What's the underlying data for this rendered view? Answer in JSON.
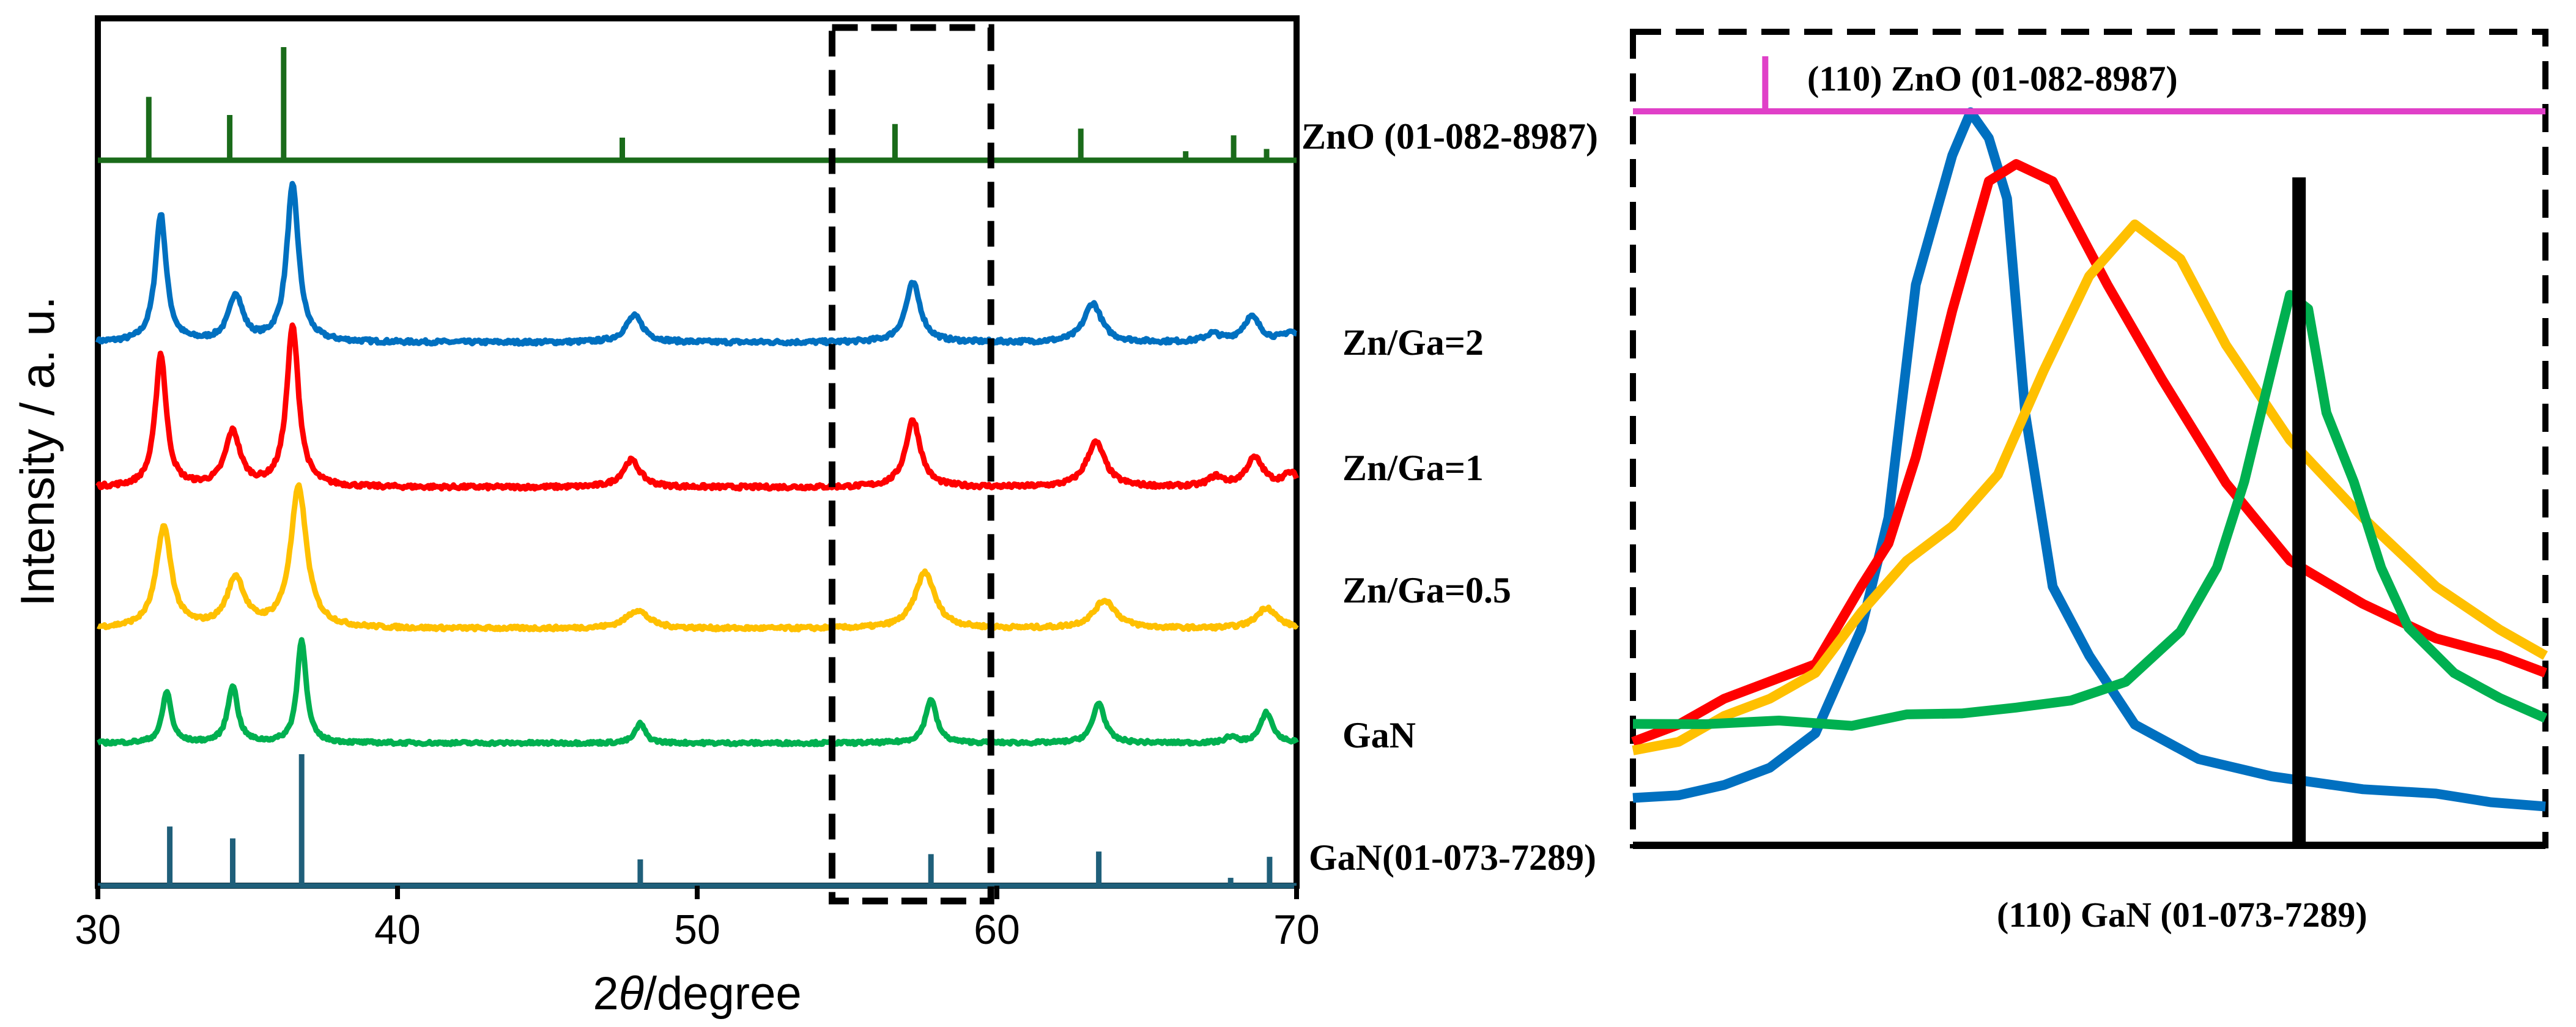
{
  "chart_data": [
    {
      "type": "line",
      "panel": "main-xrd",
      "xlabel_prefix": "2",
      "xlabel_theta": "θ",
      "xlabel_suffix": "/degree",
      "ylabel": "Intensity / a. u.",
      "xlim": [
        30,
        70
      ],
      "xticks": [
        30,
        40,
        50,
        60,
        70
      ],
      "colors": {
        "zno_ref": "#1a6b1a",
        "zn_ga_2": "#0070c0",
        "zn_ga_1": "#ff0000",
        "zn_ga_05": "#ffc000",
        "gan": "#00b050",
        "gan_ref": "#1f5f7a"
      },
      "series": [
        {
          "key": "zn_ga_2",
          "name": "Zn/Ga=2",
          "baseline_rel": 0.25,
          "peaks": [
            [
              32.1,
              0.82,
              0.22
            ],
            [
              34.6,
              0.3,
              0.28
            ],
            [
              36.5,
              1.0,
              0.24
            ],
            [
              47.9,
              0.17,
              0.35
            ],
            [
              57.2,
              0.38,
              0.3
            ],
            [
              63.2,
              0.25,
              0.35
            ],
            [
              67.2,
              0.05,
              0.3
            ],
            [
              68.5,
              0.16,
              0.35
            ],
            [
              69.8,
              0.06,
              0.3
            ]
          ]
        },
        {
          "key": "zn_ga_1",
          "name": "Zn/Ga=1",
          "baseline_rel": 0.25,
          "peaks": [
            [
              32.1,
              0.83,
              0.22
            ],
            [
              34.5,
              0.34,
              0.3
            ],
            [
              36.5,
              1.0,
              0.24
            ],
            [
              47.8,
              0.17,
              0.35
            ],
            [
              57.2,
              0.42,
              0.3
            ],
            [
              63.3,
              0.28,
              0.38
            ],
            [
              67.3,
              0.06,
              0.3
            ],
            [
              68.6,
              0.18,
              0.35
            ],
            [
              69.8,
              0.08,
              0.3
            ]
          ]
        },
        {
          "key": "zn_ga_05",
          "name": "Zn/Ga=0.5",
          "baseline_rel": 0.25,
          "peaks": [
            [
              32.2,
              0.72,
              0.3
            ],
            [
              34.6,
              0.35,
              0.35
            ],
            [
              36.7,
              1.0,
              0.32
            ],
            [
              48.0,
              0.13,
              0.45
            ],
            [
              57.6,
              0.4,
              0.4
            ],
            [
              63.6,
              0.2,
              0.45
            ],
            [
              69.0,
              0.15,
              0.4
            ]
          ]
        },
        {
          "key": "gan",
          "name": "GaN",
          "baseline_rel": 0.25,
          "peaks": [
            [
              32.3,
              0.42,
              0.18
            ],
            [
              34.5,
              0.47,
              0.2
            ],
            [
              36.8,
              0.85,
              0.18
            ],
            [
              48.1,
              0.16,
              0.2
            ],
            [
              57.8,
              0.36,
              0.22
            ],
            [
              63.4,
              0.33,
              0.24
            ],
            [
              67.8,
              0.05,
              0.2
            ],
            [
              69.0,
              0.25,
              0.24
            ]
          ]
        }
      ],
      "references": [
        {
          "key": "zno_ref",
          "name": "ZnO (01-082-8987)",
          "sticks": [
            [
              31.7,
              0.56
            ],
            [
              34.4,
              0.4
            ],
            [
              36.2,
              1.0
            ],
            [
              47.5,
              0.2
            ],
            [
              56.6,
              0.32
            ],
            [
              62.8,
              0.28
            ],
            [
              66.3,
              0.08
            ],
            [
              67.9,
              0.22
            ],
            [
              69.0,
              0.1
            ]
          ]
        },
        {
          "key": "gan_ref",
          "name": "GaN(01-073-7289)",
          "sticks": [
            [
              32.4,
              0.45
            ],
            [
              34.5,
              0.36
            ],
            [
              36.8,
              1.0
            ],
            [
              48.1,
              0.2
            ],
            [
              57.8,
              0.24
            ],
            [
              63.4,
              0.26
            ],
            [
              67.8,
              0.06
            ],
            [
              69.1,
              0.22
            ]
          ]
        }
      ],
      "zoom_box_x": [
        54.5,
        59.8
      ]
    },
    {
      "type": "line",
      "panel": "zoom-inset",
      "top_label": "(110) ZnO (01-082-8987)",
      "bottom_label": "(110) GaN (01-073-7289)",
      "ref_colors": {
        "zno": "#e040c8",
        "gan": "#000000"
      },
      "x_rel_range": [
        0,
        1
      ],
      "zno_ref_x_rel": 0.145,
      "gan_ref_x_rel": 0.73,
      "series": [
        {
          "key": "zn_ga_2",
          "name": "Zn/Ga=2",
          "color": "#0070c0",
          "points": [
            [
              0,
              0.055
            ],
            [
              0.05,
              0.058
            ],
            [
              0.1,
              0.07
            ],
            [
              0.15,
              0.09
            ],
            [
              0.2,
              0.13
            ],
            [
              0.25,
              0.25
            ],
            [
              0.28,
              0.38
            ],
            [
              0.31,
              0.65
            ],
            [
              0.35,
              0.8
            ],
            [
              0.37,
              0.85
            ],
            [
              0.39,
              0.82
            ],
            [
              0.41,
              0.75
            ],
            [
              0.43,
              0.5
            ],
            [
              0.46,
              0.3
            ],
            [
              0.5,
              0.22
            ],
            [
              0.55,
              0.14
            ],
            [
              0.62,
              0.1
            ],
            [
              0.7,
              0.08
            ],
            [
              0.8,
              0.065
            ],
            [
              0.88,
              0.06
            ],
            [
              0.94,
              0.05
            ],
            [
              1,
              0.045
            ]
          ]
        },
        {
          "key": "zn_ga_1",
          "name": "Zn/Ga=1",
          "color": "#ff0000",
          "points": [
            [
              0,
              0.12
            ],
            [
              0.05,
              0.14
            ],
            [
              0.1,
              0.17
            ],
            [
              0.15,
              0.19
            ],
            [
              0.2,
              0.21
            ],
            [
              0.25,
              0.3
            ],
            [
              0.28,
              0.35
            ],
            [
              0.31,
              0.45
            ],
            [
              0.35,
              0.62
            ],
            [
              0.39,
              0.77
            ],
            [
              0.42,
              0.79
            ],
            [
              0.46,
              0.77
            ],
            [
              0.52,
              0.65
            ],
            [
              0.58,
              0.54
            ],
            [
              0.65,
              0.42
            ],
            [
              0.72,
              0.33
            ],
            [
              0.8,
              0.28
            ],
            [
              0.88,
              0.24
            ],
            [
              0.95,
              0.22
            ],
            [
              1,
              0.2
            ]
          ]
        },
        {
          "key": "zn_ga_05",
          "name": "Zn/Ga=0.5",
          "color": "#ffc000",
          "points": [
            [
              0,
              0.11
            ],
            [
              0.05,
              0.12
            ],
            [
              0.1,
              0.15
            ],
            [
              0.15,
              0.17
            ],
            [
              0.2,
              0.2
            ],
            [
              0.25,
              0.27
            ],
            [
              0.3,
              0.33
            ],
            [
              0.35,
              0.37
            ],
            [
              0.4,
              0.43
            ],
            [
              0.45,
              0.55
            ],
            [
              0.5,
              0.66
            ],
            [
              0.55,
              0.72
            ],
            [
              0.6,
              0.68
            ],
            [
              0.65,
              0.58
            ],
            [
              0.72,
              0.47
            ],
            [
              0.8,
              0.38
            ],
            [
              0.88,
              0.3
            ],
            [
              0.95,
              0.25
            ],
            [
              1,
              0.22
            ]
          ]
        },
        {
          "key": "gan",
          "name": "GaN",
          "color": "#00b050",
          "points": [
            [
              0,
              0.14
            ],
            [
              0.08,
              0.14
            ],
            [
              0.16,
              0.145
            ],
            [
              0.24,
              0.14
            ],
            [
              0.3,
              0.15
            ],
            [
              0.36,
              0.155
            ],
            [
              0.42,
              0.16
            ],
            [
              0.48,
              0.17
            ],
            [
              0.54,
              0.19
            ],
            [
              0.6,
              0.25
            ],
            [
              0.64,
              0.32
            ],
            [
              0.67,
              0.42
            ],
            [
              0.7,
              0.55
            ],
            [
              0.72,
              0.64
            ],
            [
              0.74,
              0.62
            ],
            [
              0.76,
              0.5
            ],
            [
              0.79,
              0.42
            ],
            [
              0.82,
              0.32
            ],
            [
              0.85,
              0.25
            ],
            [
              0.9,
              0.2
            ],
            [
              0.95,
              0.17
            ],
            [
              1,
              0.15
            ]
          ]
        }
      ]
    }
  ]
}
